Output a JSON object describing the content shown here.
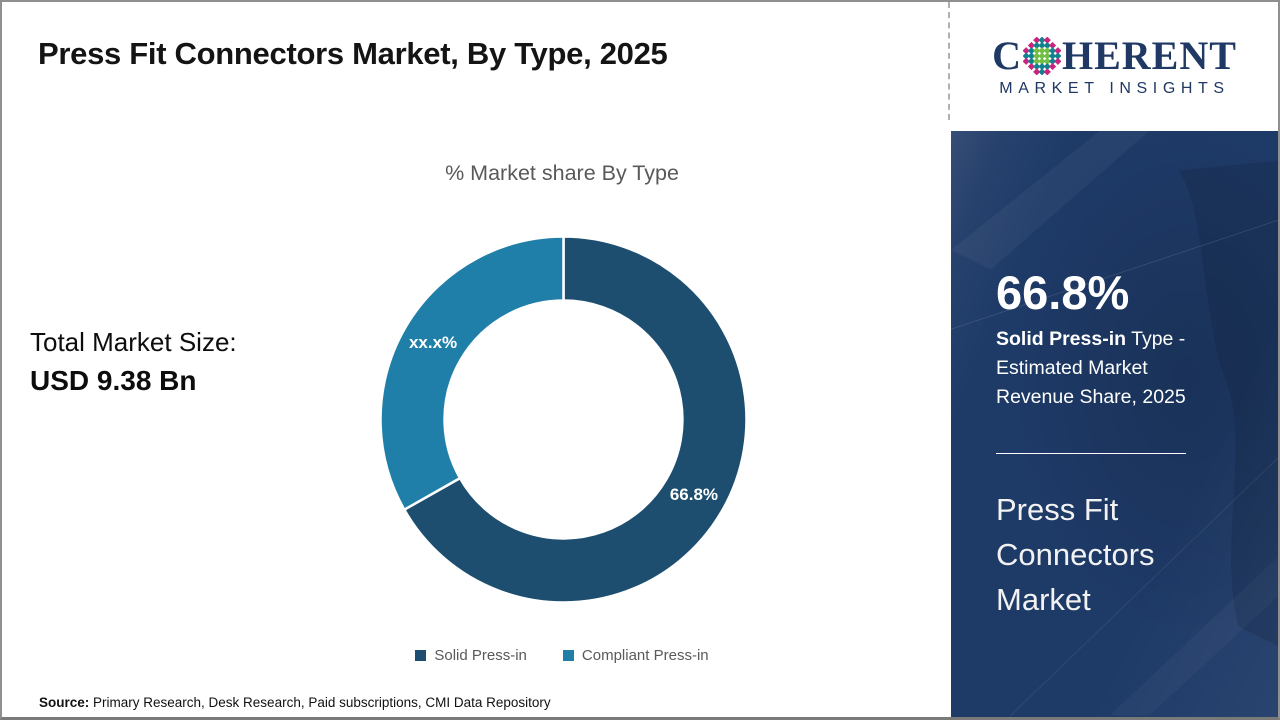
{
  "header": {
    "title": "Press Fit Connectors Market, By Type, 2025"
  },
  "logo": {
    "brand_start": "C",
    "brand_rest": "HERENT",
    "tagline": "MARKET INSIGHTS",
    "brand_color": "#1f3864",
    "globe_colors": {
      "inner": "#72bf44",
      "mid": "#12818f",
      "outer": "#c9247e"
    }
  },
  "left_panel": {
    "total_label": "Total Market Size:",
    "total_value": "USD 9.38 Bn"
  },
  "chart_data": {
    "type": "pie",
    "subtype": "donut",
    "title": "% Market share By Type",
    "categories": [
      "Solid Press-in",
      "Compliant Press-in"
    ],
    "values": [
      66.8,
      33.2
    ],
    "slice_labels": [
      "66.8%",
      "xx.x%"
    ],
    "colors": [
      "#1d4e70",
      "#1f7fa8"
    ],
    "start_angle_deg": 0,
    "direction": "clockwise",
    "inner_radius_ratio": 0.65,
    "legend_position": "bottom",
    "label_color": "#ffffff"
  },
  "sidebar": {
    "headline_value": "66.8%",
    "desc_bold": "Solid Press-in",
    "desc_rest": " Type - Estimated Market Revenue Share, 2025",
    "market_name": "Press Fit Connectors Market",
    "background": "#1e3a67"
  },
  "footer": {
    "source_label": "Source:",
    "source_text": " Primary Research, Desk Research, Paid subscriptions, CMI Data Repository"
  }
}
